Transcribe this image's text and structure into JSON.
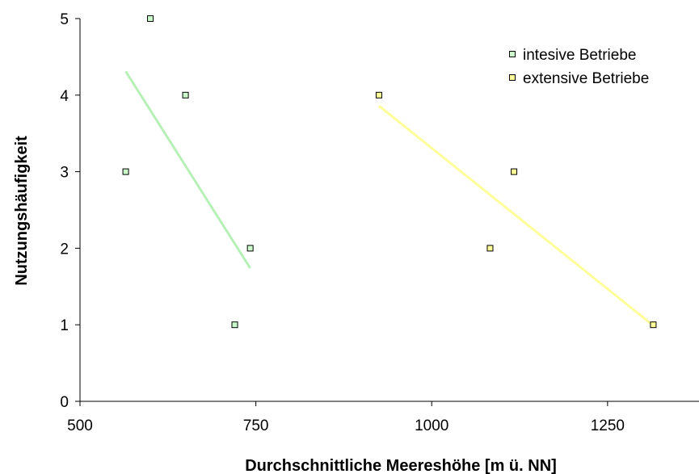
{
  "chart_data": {
    "type": "scatter",
    "xlabel": "Durchschnittliche Meereshöhe [m ü. NN]",
    "ylabel": "Nutzungshäufigkeit",
    "xlim": [
      500,
      1380
    ],
    "ylim": [
      0,
      5
    ],
    "xticks": [
      500,
      750,
      1000,
      1250
    ],
    "yticks": [
      0,
      1,
      2,
      3,
      4,
      5
    ],
    "legend_position": "top-right",
    "grid": false,
    "series": [
      {
        "name": "intesive Betriebe",
        "color": "#b6f0b6",
        "marker_fill": "#ccffcc",
        "x": [
          565,
          600,
          650,
          720,
          742
        ],
        "y": [
          3,
          5,
          4,
          1,
          2
        ],
        "trendline": {
          "x": [
            565,
            742
          ],
          "y": [
            4.31,
            1.74
          ]
        }
      },
      {
        "name": "extensive Betriebe",
        "color": "#ffff99",
        "marker_fill": "#ffff99",
        "x": [
          925,
          1083,
          1117,
          1315
        ],
        "y": [
          4,
          2,
          3,
          1
        ],
        "trendline": {
          "x": [
            925,
            1315
          ],
          "y": [
            3.86,
            0.99
          ]
        }
      }
    ]
  }
}
